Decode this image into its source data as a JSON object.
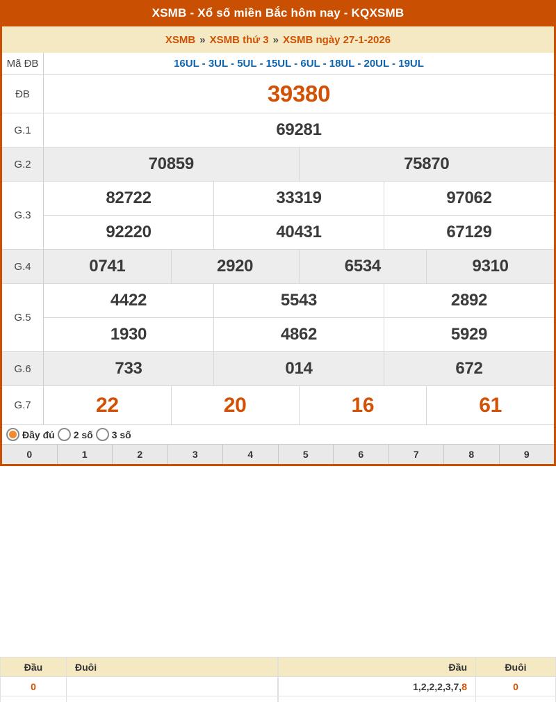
{
  "header": {
    "title": "XSMB - Xổ số miền Bắc hôm nay - KQXSMB"
  },
  "breadcrumb": {
    "separator": "»",
    "items": [
      "XSMB",
      "XSMB thứ 3",
      "XSMB ngày 27-1-2026"
    ]
  },
  "results": {
    "rows": [
      {
        "label": "Mã ĐB",
        "cells": [
          [
            "16UL - 3UL - 5UL - 15UL - 6UL - 18UL - 20UL - 19UL"
          ]
        ]
      },
      {
        "label": "ĐB",
        "cells": [
          [
            "39380"
          ]
        ]
      },
      {
        "label": "G.1",
        "cells": [
          [
            "69281"
          ]
        ]
      },
      {
        "label": "G.2",
        "cells": [
          [
            "70859",
            "75870"
          ]
        ]
      },
      {
        "label": "G.3",
        "cells": [
          [
            "82722",
            "33319",
            "97062"
          ],
          [
            "92220",
            "40431",
            "67129"
          ]
        ]
      },
      {
        "label": "G.4",
        "cells": [
          [
            "0741",
            "2920",
            "6534",
            "9310"
          ]
        ]
      },
      {
        "label": "G.5",
        "cells": [
          [
            "4422",
            "5543",
            "2892"
          ],
          [
            "1930",
            "4862",
            "5929"
          ]
        ]
      },
      {
        "label": "G.6",
        "cells": [
          [
            "733",
            "014",
            "672"
          ]
        ]
      },
      {
        "label": "G.7",
        "cells": [
          [
            "22",
            "20",
            "16",
            "61"
          ]
        ]
      }
    ]
  },
  "filters": {
    "options": [
      {
        "label": "Đầy đủ",
        "selected": true
      },
      {
        "label": "2 số",
        "selected": false
      },
      {
        "label": "3 số",
        "selected": false
      }
    ]
  },
  "digits": [
    "0",
    "1",
    "2",
    "3",
    "4",
    "5",
    "6",
    "7",
    "8",
    "9"
  ],
  "stats": {
    "left": {
      "dau_header": "Đầu",
      "duoi_header": "Đuôi",
      "rows": [
        {
          "dau": "0",
          "duoi": ""
        }
      ]
    },
    "right": {
      "dau_header": "Đầu",
      "duoi_header": "Đuôi",
      "rows": [
        {
          "dau_normal": "1,2,2,2,3,7,",
          "dau_highlight": "8",
          "duoi": "0"
        }
      ]
    }
  },
  "colors": {
    "accent_orange": "#c94f02",
    "highlight_orange": "#d35104",
    "link_blue": "#1065af",
    "breadcrumb_beige": "#f4e9c2"
  }
}
